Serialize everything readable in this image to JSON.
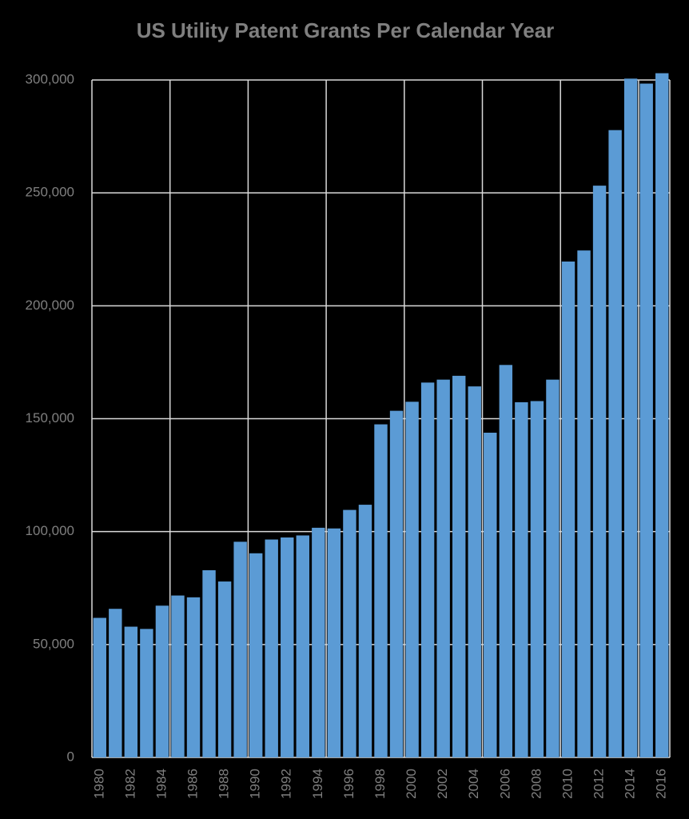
{
  "chart_data": {
    "type": "bar",
    "title": "US Utility Patent Grants Per Calendar Year",
    "categories": [
      "1980",
      null,
      "1982",
      null,
      "1984",
      null,
      "1986",
      null,
      "1988",
      null,
      "1990",
      null,
      "1992",
      null,
      "1994",
      null,
      "1996",
      null,
      "1998",
      null,
      "2000",
      null,
      "2002",
      null,
      "2004",
      null,
      "2006",
      null,
      "2008",
      null,
      "2010",
      null,
      "2012",
      null,
      "2014",
      null,
      "2016"
    ],
    "values": [
      61800,
      65800,
      57900,
      56900,
      67200,
      71700,
      70900,
      82900,
      77900,
      95500,
      90400,
      96500,
      97400,
      98300,
      101700,
      101400,
      109600,
      111900,
      147500,
      153500,
      157500,
      166000,
      167300,
      169000,
      164300,
      143800,
      173800,
      157300,
      157800,
      167300,
      219600,
      224500,
      253200,
      277800,
      300600,
      298400,
      303000
    ],
    "color": "#5b9bd5",
    "ylim": [
      0,
      300000
    ],
    "yticks": [
      0,
      {
        "value": 50000,
        "label": "50,000"
      },
      {
        "value": 100000,
        "label": "100,000"
      },
      {
        "value": 150000,
        "label": "150,000"
      },
      {
        "value": 200000,
        "label": "200,000"
      },
      {
        "value": 250000,
        "label": "250,000"
      },
      {
        "value": 300000,
        "label": "300,000"
      }
    ],
    "grid": true
  }
}
